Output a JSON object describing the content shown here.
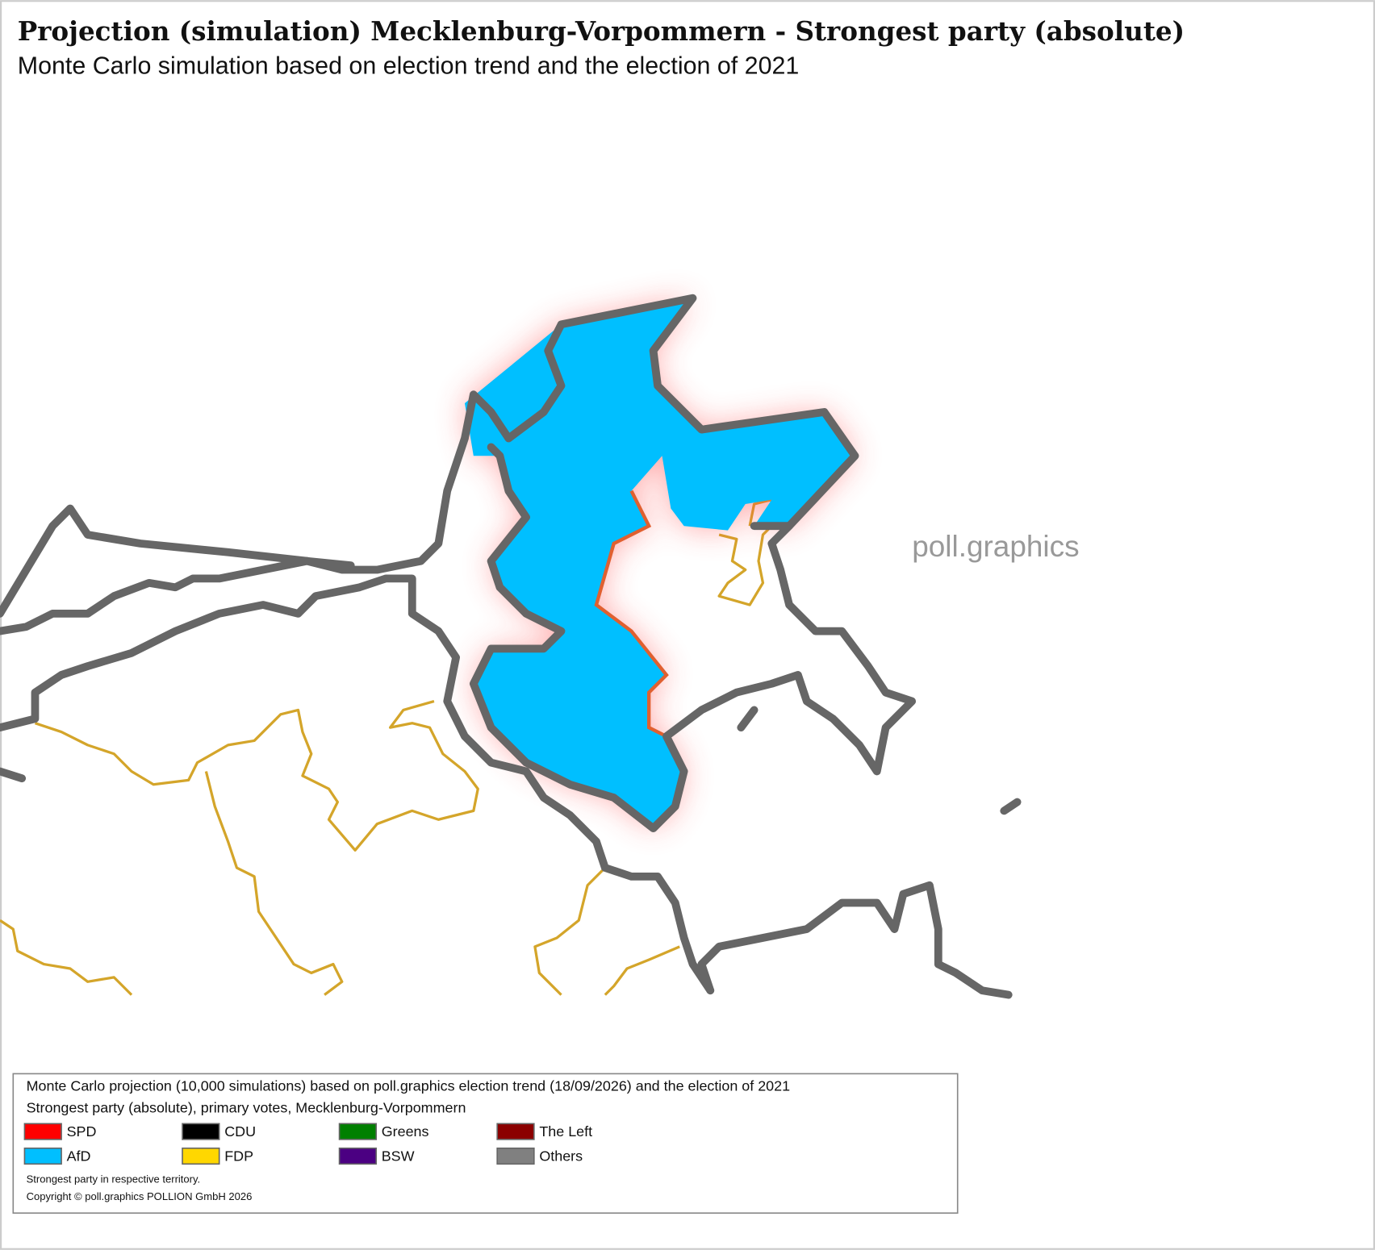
{
  "header": {
    "title": "Projection (simulation) Mecklenburg-Vorpommern - Strongest party (absolute)",
    "subtitle": "Monte Carlo simulation based on election trend and the election of 2021"
  },
  "watermark": "poll.graphics",
  "legend": {
    "description": [
      "Monte Carlo projection (10,000 simulations) based on poll.graphics election trend (18/09/2026) and the election of 2021",
      "Strongest party (absolute), primary votes, Mecklenburg-Vorpommern"
    ],
    "items": [
      {
        "name": "SPD",
        "color": "#ff0000"
      },
      {
        "name": "CDU",
        "color": "#000000"
      },
      {
        "name": "Greens",
        "color": "#008000"
      },
      {
        "name": "The Left",
        "color": "#8b0000"
      },
      {
        "name": "AfD",
        "color": "#00bfff"
      },
      {
        "name": "FDP",
        "color": "#ffd700"
      },
      {
        "name": "BSW",
        "color": "#4b0082"
      },
      {
        "name": "Others",
        "color": "#808080"
      }
    ],
    "notes": [
      "Strongest party in respective territory.",
      "Copyright © poll.graphics POLLION GmbH 2026"
    ]
  }
}
